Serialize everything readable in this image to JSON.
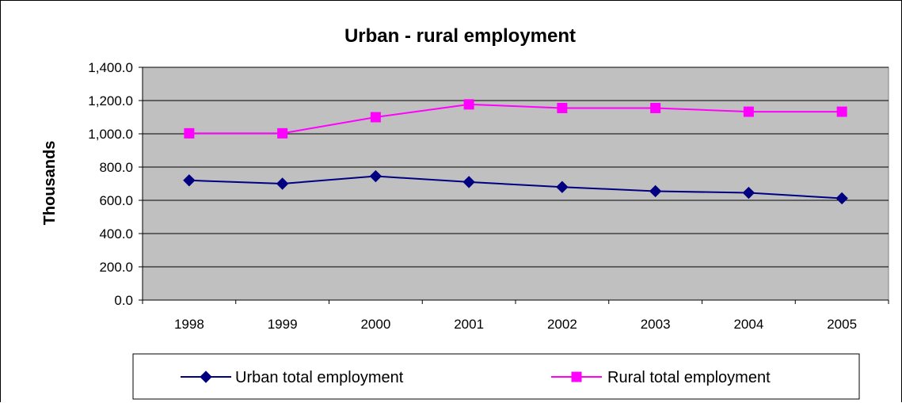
{
  "chart_data": {
    "type": "line",
    "title": "Urban - rural employment",
    "xlabel": "",
    "ylabel": "Thousands",
    "categories": [
      "1998",
      "1999",
      "2000",
      "2001",
      "2002",
      "2003",
      "2004",
      "2005"
    ],
    "ylim": [
      0,
      1400
    ],
    "yticks": [
      "0.0",
      "200.0",
      "400.0",
      "600.0",
      "800.0",
      "1,000.0",
      "1,200.0",
      "1,400.0"
    ],
    "grid": true,
    "plot_background": "#c0c0c0",
    "legend_position": "bottom",
    "series": [
      {
        "name": "Urban total employment",
        "color": "#000080",
        "marker": "diamond",
        "values": [
          720,
          700,
          745,
          710,
          680,
          655,
          645,
          612
        ]
      },
      {
        "name": "Rural total employment",
        "color": "#ff00ff",
        "marker": "square",
        "values": [
          1003,
          1003,
          1100,
          1177,
          1155,
          1155,
          1133,
          1133
        ]
      }
    ]
  }
}
